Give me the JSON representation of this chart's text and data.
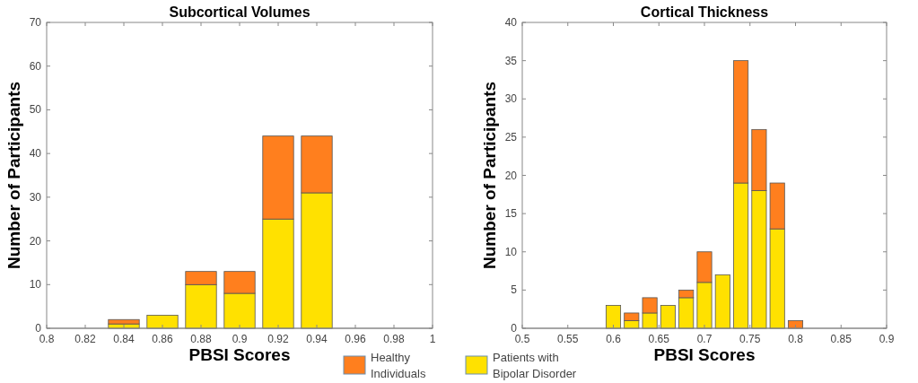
{
  "chart_data": [
    {
      "type": "bar",
      "stacked": true,
      "title": "Subcortical Volumes",
      "xlabel": "PBSI Scores",
      "ylabel": "Number of Participants",
      "xlim": [
        0.8,
        1
      ],
      "xticks": [
        0.8,
        0.82,
        0.84,
        0.86,
        0.88,
        0.9,
        0.92,
        0.94,
        0.96,
        0.98,
        1
      ],
      "ylim": [
        0,
        70
      ],
      "yticks": [
        0,
        10,
        20,
        30,
        40,
        50,
        60,
        70
      ],
      "legend": "bottom",
      "grid": false,
      "x": [
        0.84,
        0.86,
        0.88,
        0.9,
        0.92,
        0.94
      ],
      "series": [
        {
          "name": "Patients with Bipolar Disorder",
          "color": "#ffe100",
          "values": [
            1,
            3,
            10,
            8,
            25,
            31
          ]
        },
        {
          "name": "Healthy Individuals",
          "color": "#ff7f1e",
          "values": [
            1,
            0,
            3,
            5,
            19,
            13
          ]
        }
      ]
    },
    {
      "type": "bar",
      "stacked": true,
      "title": "Cortical Thickness",
      "xlabel": "PBSI Scores",
      "ylabel": "Number of Participants",
      "xlim": [
        0.5,
        0.9
      ],
      "xticks": [
        0.5,
        0.55,
        0.6,
        0.65,
        0.7,
        0.75,
        0.8,
        0.85,
        0.9
      ],
      "ylim": [
        0,
        40
      ],
      "yticks": [
        0,
        5,
        10,
        15,
        20,
        25,
        30,
        35,
        40
      ],
      "grid": false,
      "x": [
        0.6,
        0.62,
        0.64,
        0.66,
        0.68,
        0.7,
        0.72,
        0.74,
        0.76,
        0.78,
        0.8
      ],
      "series": [
        {
          "color": "#ffe100",
          "values": [
            3,
            1,
            2,
            3,
            4,
            6,
            7,
            19,
            18,
            13,
            0
          ]
        },
        {
          "color": "#ff7f1e",
          "values": [
            0,
            1,
            2,
            0,
            1,
            4,
            0,
            16,
            8,
            6,
            1
          ]
        }
      ]
    }
  ]
}
